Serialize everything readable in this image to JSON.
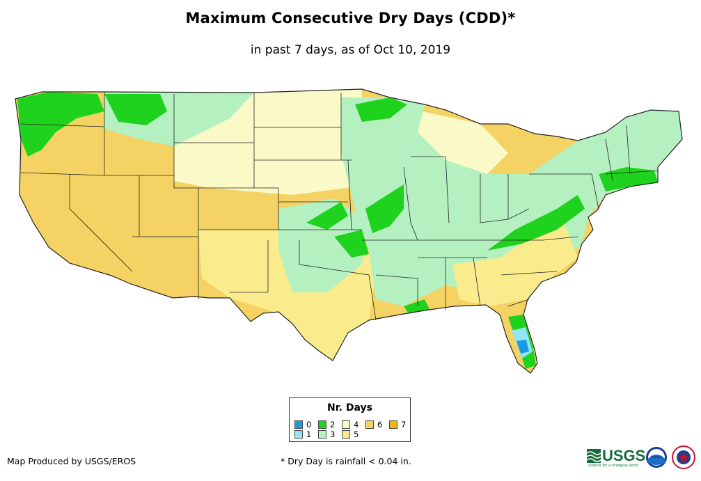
{
  "title": "Maximum Consecutive Dry Days (CDD)*",
  "subtitle": "in past 7 days, as of Oct 10, 2019",
  "legend": {
    "title": "Nr. Days",
    "items": [
      {
        "label": "0",
        "color": "#1c9ce0"
      },
      {
        "label": "1",
        "color": "#8fe6f5"
      },
      {
        "label": "2",
        "color": "#1ed21e"
      },
      {
        "label": "3",
        "color": "#b4f0c0"
      },
      {
        "label": "4",
        "color": "#fafac8"
      },
      {
        "label": "5",
        "color": "#faeb8c"
      },
      {
        "label": "6",
        "color": "#f5d264"
      },
      {
        "label": "7",
        "color": "#f0b414"
      }
    ]
  },
  "footer": {
    "credit": "Map Produced by USGS/EROS",
    "note": "* Dry Day is rainfall < 0.04 in."
  },
  "logos": {
    "usgs": "USGS",
    "usgs_tagline": "science for a changing world",
    "noaa": "noaa"
  }
}
